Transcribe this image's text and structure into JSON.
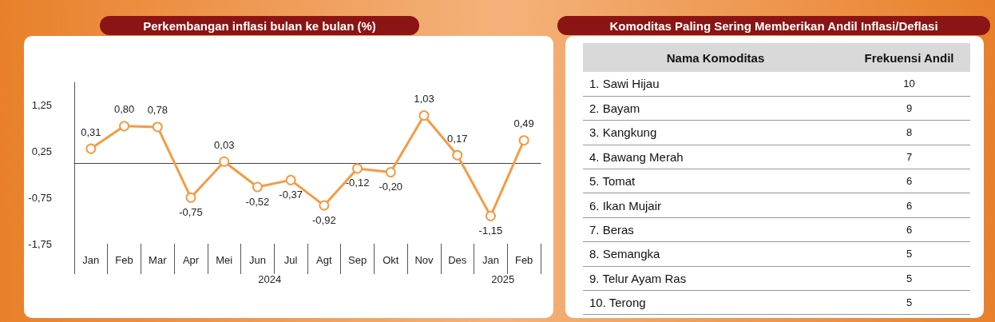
{
  "chart_data": [
    {
      "type": "line",
      "title": "Perkembangan inflasi bulan ke bulan (%)",
      "categories": [
        "Jan",
        "Feb",
        "Mar",
        "Apr",
        "Mei",
        "Jun",
        "Jul",
        "Agt",
        "Sep",
        "Okt",
        "Nov",
        "Des",
        "Jan",
        "Feb"
      ],
      "series": [
        {
          "color": "#f39c45",
          "values": [
            0.31,
            0.8,
            0.78,
            -0.75,
            0.03,
            -0.52,
            -0.37,
            -0.92,
            -0.12,
            -0.2,
            1.03,
            0.17,
            -1.15,
            0.49
          ],
          "value_labels": [
            "0,31",
            "0,80",
            "0,78",
            "-0,75",
            "0,03",
            "-0,52",
            "-0,37",
            "-0,92",
            "-0,12",
            "-0,20",
            "1,03",
            "0,17",
            "-1,15",
            "0,49"
          ]
        }
      ],
      "ylim": [
        -1.75,
        1.75
      ],
      "yticks": [
        {
          "value": 1.25,
          "label": "1,25"
        },
        {
          "value": 0.25,
          "label": "0,25"
        },
        {
          "value": -0.75,
          "label": "-0,75"
        },
        {
          "value": -1.75,
          "label": "-1,75"
        }
      ],
      "annotations": [
        "2024",
        "2025"
      ],
      "marker": "circle",
      "grid": false
    },
    {
      "type": "other",
      "title": "Komoditas Paling Sering Memberikan Andil Inflasi/Deflasi",
      "xlabel": "Nama Komoditas",
      "ylabel": "Frekuensi Andil",
      "categories": [
        "1.  Sawi Hijau",
        "2.  Bayam",
        "3.  Kangkung",
        "4.  Bawang Merah",
        "5.  Tomat",
        "6.  Ikan Mujair",
        "7.  Beras",
        "8.  Semangka",
        "9.  Telur Ayam Ras",
        "10. Terong"
      ],
      "values": [
        10,
        9,
        8,
        7,
        6,
        6,
        6,
        5,
        5,
        5
      ],
      "data_labels": true
    }
  ]
}
